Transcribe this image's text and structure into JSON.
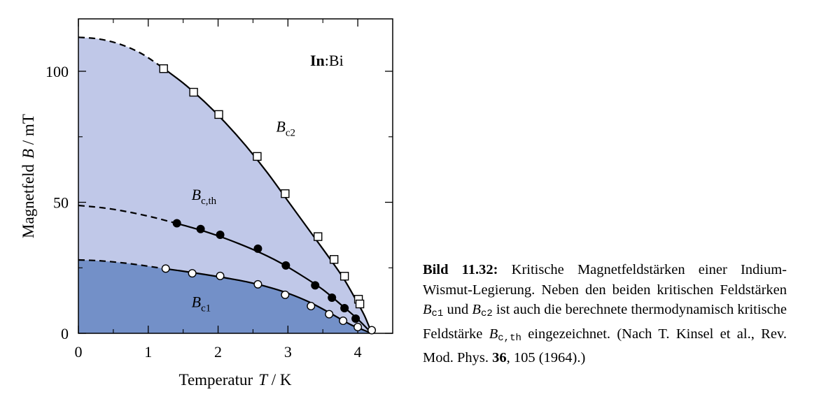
{
  "chart_data": {
    "type": "line",
    "xlim": [
      0,
      4.5
    ],
    "ylim": [
      0,
      120
    ],
    "x_ticks": [
      "0",
      "1",
      "2",
      "3",
      "4"
    ],
    "x_tick_values": [
      0,
      1,
      2,
      3,
      4
    ],
    "y_ticks": [
      "0",
      "50",
      "100"
    ],
    "y_tick_values": [
      0,
      50,
      100
    ],
    "xlabel_main": "Temperatur",
    "xlabel_symbol": "T",
    "xlabel_unit": " / K",
    "ylabel_main": "Magnetfeld",
    "ylabel_symbol": "B",
    "ylabel_unit": " / mT",
    "annotation_bold": "In",
    "annotation_rest": ":Bi",
    "colors": {
      "upper_region": "#c0c8e8",
      "lower_region": "#7390c8"
    },
    "series": [
      {
        "label_main": "B",
        "label_sub": "c2",
        "marker": "open-square",
        "label_pos": [
          2.83,
          77
        ],
        "curve_dashed": [
          [
            0,
            113
          ],
          [
            0.3,
            112.3
          ],
          [
            0.6,
            110.3
          ],
          [
            0.9,
            106.8
          ],
          [
            1.2,
            101.5
          ]
        ],
        "curve_solid": [
          [
            1.2,
            101.5
          ],
          [
            1.5,
            95.5
          ],
          [
            1.8,
            88.5
          ],
          [
            2.1,
            80.5
          ],
          [
            2.4,
            71.5
          ],
          [
            2.7,
            61.5
          ],
          [
            3.0,
            50.5
          ],
          [
            3.3,
            39.5
          ],
          [
            3.6,
            28.5
          ],
          [
            3.8,
            20.8
          ],
          [
            4.0,
            11.5
          ],
          [
            4.1,
            6.5
          ],
          [
            4.2,
            0
          ]
        ],
        "points": [
          [
            1.22,
            101
          ],
          [
            1.65,
            92
          ],
          [
            2.01,
            83.5
          ],
          [
            2.56,
            67.5
          ],
          [
            2.96,
            53.3
          ],
          [
            3.43,
            36.9
          ],
          [
            3.66,
            28.2
          ],
          [
            3.81,
            21.8
          ],
          [
            4.01,
            13
          ],
          [
            4.03,
            11.2
          ]
        ]
      },
      {
        "label_main": "B",
        "label_sub": "c,th",
        "marker": "filled-circle",
        "label_pos": [
          1.62,
          51
        ],
        "curve_dashed": [
          [
            0,
            48.8
          ],
          [
            0.35,
            47.9
          ],
          [
            0.7,
            46.4
          ],
          [
            1.05,
            44.4
          ],
          [
            1.4,
            42
          ]
        ],
        "curve_solid": [
          [
            1.4,
            42
          ],
          [
            1.7,
            39.8
          ],
          [
            2.0,
            37.2
          ],
          [
            2.3,
            34.2
          ],
          [
            2.6,
            30.8
          ],
          [
            2.9,
            26.8
          ],
          [
            3.2,
            22
          ],
          [
            3.5,
            16.7
          ],
          [
            3.8,
            10
          ],
          [
            4.0,
            5.4
          ],
          [
            4.2,
            0
          ]
        ],
        "points": [
          [
            1.41,
            42
          ],
          [
            1.75,
            39.8
          ],
          [
            2.03,
            37.6
          ],
          [
            2.57,
            32.3
          ],
          [
            2.97,
            25.9
          ],
          [
            3.39,
            18.3
          ],
          [
            3.63,
            13.6
          ],
          [
            3.81,
            9.6
          ],
          [
            3.97,
            5.6
          ]
        ]
      },
      {
        "label_main": "B",
        "label_sub": "c1",
        "marker": "open-circle",
        "label_pos": [
          1.62,
          10
        ],
        "curve_dashed": [
          [
            0,
            28
          ],
          [
            0.3,
            27.7
          ],
          [
            0.6,
            27
          ],
          [
            0.9,
            26
          ],
          [
            1.2,
            24.8
          ]
        ],
        "curve_solid": [
          [
            1.2,
            24.8
          ],
          [
            1.5,
            23.7
          ],
          [
            1.8,
            22.5
          ],
          [
            2.1,
            21.2
          ],
          [
            2.4,
            19.7
          ],
          [
            2.7,
            17.8
          ],
          [
            3.0,
            15.3
          ],
          [
            3.3,
            12
          ],
          [
            3.6,
            7.8
          ],
          [
            3.9,
            3.3
          ],
          [
            4.2,
            0
          ]
        ],
        "points": [
          [
            1.25,
            24.7
          ],
          [
            1.63,
            22.9
          ],
          [
            2.03,
            21.9
          ],
          [
            2.57,
            18.7
          ],
          [
            2.96,
            14.7
          ],
          [
            3.33,
            10.4
          ],
          [
            3.59,
            7.3
          ],
          [
            3.79,
            4.8
          ],
          [
            4.0,
            2.4
          ],
          [
            4.2,
            1.2
          ]
        ]
      }
    ]
  },
  "caption": {
    "lead": "Bild 11.32:",
    "text1": " Kritische Magnetfeldstärken einer Indium-Wismut-Legierung. Neben den beiden kritischen Feldstärken ",
    "sym1": "B",
    "sub1": "c1",
    "text2": " und ",
    "sym2": "B",
    "sub2": "c2",
    "text3": " ist auch die berechnete thermodynamisch kritische Feldstärke ",
    "sym3": "B",
    "sub3": "c,th",
    "text4": " eingezeichnet. (Nach T. Kinsel et al., Rev. Mod. Phys. ",
    "volume": "36",
    "text5": ", 105 (1964).)"
  }
}
